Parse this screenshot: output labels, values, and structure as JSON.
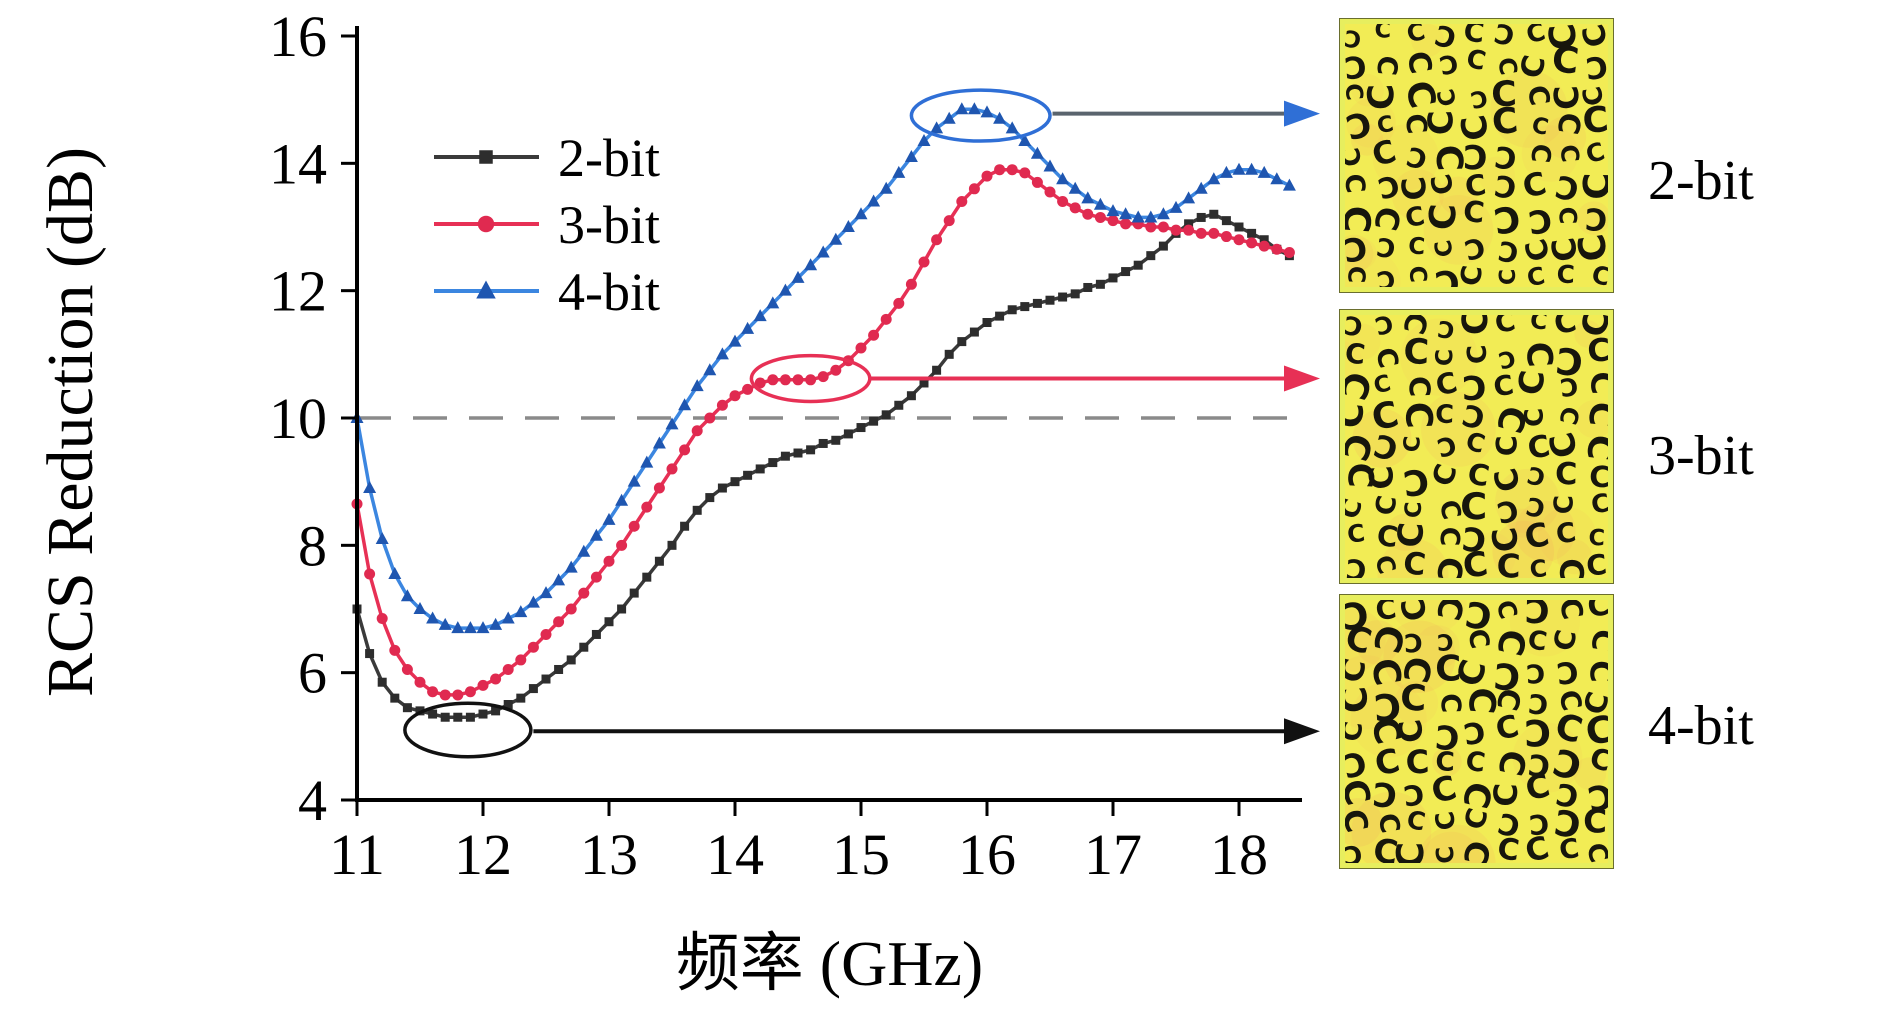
{
  "chart_data": {
    "type": "line",
    "title": "",
    "xlabel": "频率 (GHz)",
    "ylabel": "RCS Reduction (dB)",
    "xlim": [
      11,
      18.5
    ],
    "ylim": [
      4,
      16
    ],
    "x_ticks": [
      11,
      12,
      13,
      14,
      15,
      16,
      17,
      18
    ],
    "y_ticks": [
      4,
      6,
      8,
      10,
      12,
      14,
      16
    ],
    "grid": false,
    "legend_position": "top-left",
    "reference_line": {
      "y": 10,
      "style": "dashed",
      "color": "#8a8a8a"
    },
    "x_start": 11.0,
    "x_step": 0.1,
    "series": [
      {
        "name": "2-bit",
        "color": "#3a3a3a",
        "marker": "square",
        "marker_color": "#2d2d2d",
        "values": [
          7.0,
          6.3,
          5.85,
          5.6,
          5.45,
          5.4,
          5.35,
          5.3,
          5.3,
          5.3,
          5.35,
          5.4,
          5.5,
          5.6,
          5.75,
          5.9,
          6.05,
          6.2,
          6.4,
          6.6,
          6.8,
          7.0,
          7.25,
          7.5,
          7.75,
          8.0,
          8.3,
          8.55,
          8.75,
          8.9,
          9.0,
          9.1,
          9.2,
          9.3,
          9.4,
          9.45,
          9.5,
          9.6,
          9.65,
          9.75,
          9.85,
          9.95,
          10.05,
          10.2,
          10.35,
          10.55,
          10.75,
          11.0,
          11.2,
          11.35,
          11.5,
          11.6,
          11.7,
          11.75,
          11.8,
          11.85,
          11.9,
          11.95,
          12.05,
          12.1,
          12.2,
          12.3,
          12.4,
          12.55,
          12.7,
          12.9,
          13.05,
          13.15,
          13.2,
          13.1,
          13.0,
          12.9,
          12.8,
          12.65,
          12.55
        ]
      },
      {
        "name": "3-bit",
        "color": "#e73055",
        "marker": "circle",
        "marker_color": "#e02a50",
        "values": [
          8.65,
          7.55,
          6.85,
          6.35,
          6.05,
          5.85,
          5.7,
          5.65,
          5.65,
          5.7,
          5.8,
          5.9,
          6.05,
          6.2,
          6.4,
          6.6,
          6.8,
          7.0,
          7.25,
          7.5,
          7.75,
          8.0,
          8.3,
          8.6,
          8.9,
          9.2,
          9.5,
          9.8,
          10.0,
          10.2,
          10.35,
          10.45,
          10.55,
          10.6,
          10.6,
          10.6,
          10.6,
          10.65,
          10.75,
          10.9,
          11.1,
          11.3,
          11.55,
          11.8,
          12.1,
          12.45,
          12.8,
          13.1,
          13.4,
          13.6,
          13.8,
          13.9,
          13.9,
          13.85,
          13.7,
          13.55,
          13.4,
          13.3,
          13.2,
          13.15,
          13.1,
          13.05,
          13.05,
          13.0,
          13.0,
          12.95,
          12.95,
          12.9,
          12.9,
          12.85,
          12.8,
          12.75,
          12.7,
          12.65,
          12.6
        ]
      },
      {
        "name": "4-bit",
        "color": "#3b86e0",
        "marker": "triangle",
        "marker_color": "#1f56b0",
        "values": [
          10.0,
          8.9,
          8.1,
          7.55,
          7.2,
          7.0,
          6.85,
          6.75,
          6.7,
          6.7,
          6.7,
          6.75,
          6.85,
          6.95,
          7.1,
          7.25,
          7.45,
          7.65,
          7.9,
          8.15,
          8.4,
          8.7,
          9.0,
          9.3,
          9.6,
          9.9,
          10.2,
          10.5,
          10.75,
          11.0,
          11.2,
          11.4,
          11.6,
          11.8,
          12.0,
          12.2,
          12.4,
          12.6,
          12.8,
          13.0,
          13.2,
          13.4,
          13.6,
          13.85,
          14.1,
          14.35,
          14.55,
          14.7,
          14.85,
          14.85,
          14.8,
          14.7,
          14.55,
          14.35,
          14.15,
          13.95,
          13.75,
          13.6,
          13.45,
          13.35,
          13.25,
          13.2,
          13.15,
          13.15,
          13.2,
          13.3,
          13.45,
          13.6,
          13.75,
          13.85,
          13.9,
          13.9,
          13.85,
          13.75,
          13.65
        ]
      }
    ],
    "annotations": {
      "ellipses": [
        {
          "cx": 11.88,
          "cy": 5.1,
          "rx": 0.5,
          "ry": 0.42,
          "color": "#111111"
        },
        {
          "cx": 14.6,
          "cy": 10.62,
          "rx": 0.47,
          "ry": 0.36,
          "color": "#e73055"
        },
        {
          "cx": 15.95,
          "cy": 14.75,
          "rx": 0.55,
          "ry": 0.4,
          "color": "#2f6fd6"
        }
      ],
      "arrows": [
        {
          "from_x": 16.52,
          "y": 14.78,
          "line_color": "#5a646e",
          "head_color": "#2f6fd6",
          "target": "panel-2bit"
        },
        {
          "from_x": 15.08,
          "y": 10.62,
          "line_color": "#e73055",
          "head_color": "#e73055",
          "target": "panel-3bit"
        },
        {
          "from_x": 12.4,
          "y": 5.08,
          "line_color": "#111111",
          "head_color": "#111111",
          "target": "panel-4bit"
        }
      ]
    }
  },
  "panels": [
    {
      "label": "2-bit",
      "pattern": "random-C-cell metasurface",
      "bg": "#f2ec55",
      "glyph_color": "#17160c"
    },
    {
      "label": "3-bit",
      "pattern": "random-C-cell metasurface",
      "bg": "#f2ec55",
      "glyph_color": "#17160c"
    },
    {
      "label": "4-bit",
      "pattern": "random-C-cell metasurface",
      "bg": "#f2ec55",
      "glyph_color": "#17160c"
    }
  ]
}
